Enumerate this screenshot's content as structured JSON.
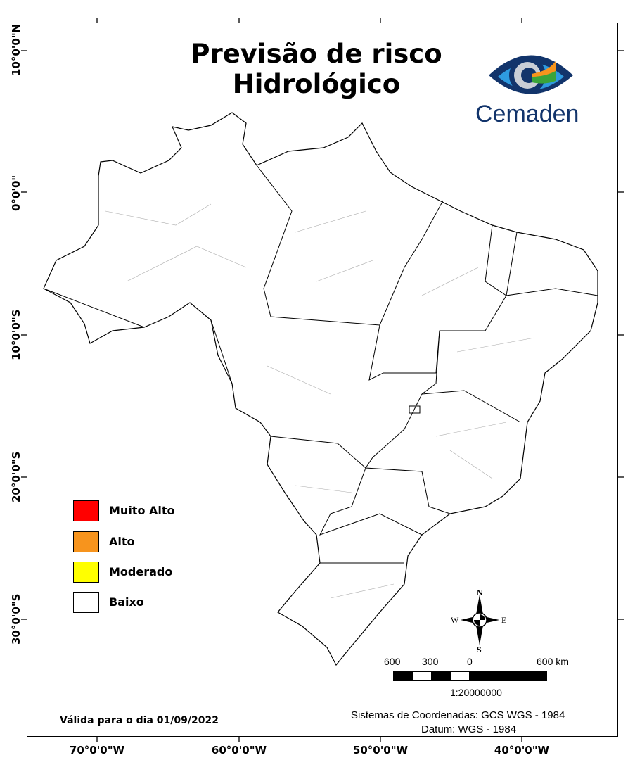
{
  "title": {
    "line1": "Previsão de risco",
    "line2": "Hidrológico"
  },
  "logo": {
    "text": "Cemaden"
  },
  "latitude_labels": [
    "10°0'0\"N",
    "0°0'0\"",
    "10°0'0\"S",
    "20°0'0\"S",
    "30°0'0\"S"
  ],
  "longitude_labels": [
    "70°0'0\"W",
    "60°0'0\"W",
    "50°0'0\"W",
    "40°0'0\"W"
  ],
  "legend": [
    {
      "label": "Muito Alto",
      "color": "#ff0000"
    },
    {
      "label": "Alto",
      "color": "#f7941d"
    },
    {
      "label": "Moderado",
      "color": "#ffff00"
    },
    {
      "label": "Baixo",
      "color": "#ffffff"
    }
  ],
  "compass": {
    "n": "N",
    "s": "S",
    "e": "E",
    "w": "W"
  },
  "scale_bar": {
    "labels": [
      "600",
      "300",
      "0",
      "600 km"
    ],
    "ratio": "1:20000000"
  },
  "validity": "Válida para o dia 01/09/2022",
  "coord_system": "Sistemas de Coordenadas: GCS WGS - 1984",
  "datum": "Datum: WGS - 1984"
}
